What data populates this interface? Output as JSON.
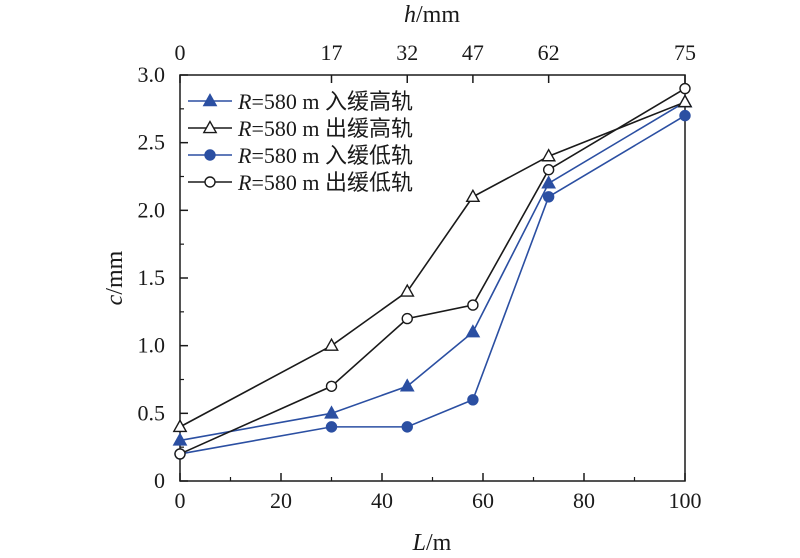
{
  "chart_data": {
    "type": "line",
    "xlabel_var": "L",
    "xlabel_unit": "/m",
    "ylabel_var": "c",
    "ylabel_unit": "/mm",
    "top_axis_var": "h",
    "top_axis_unit": "/mm",
    "xlim": [
      0,
      100
    ],
    "ylim": [
      0,
      3.0
    ],
    "x_ticks": [
      0,
      20,
      40,
      60,
      80,
      100
    ],
    "y_ticks": [
      0,
      0.5,
      1.0,
      1.5,
      2.0,
      2.5,
      3.0
    ],
    "y_tick_labels": [
      "0",
      "0.5",
      "1.0",
      "1.5",
      "2.0",
      "2.5",
      "3.0"
    ],
    "top_ticks": [
      {
        "x": 0,
        "label": "0"
      },
      {
        "x": 30,
        "label": "17"
      },
      {
        "x": 45,
        "label": "32"
      },
      {
        "x": 58,
        "label": "47"
      },
      {
        "x": 73,
        "label": "62"
      },
      {
        "x": 100,
        "label": "75"
      }
    ],
    "grid": false,
    "legend_position": "top-left",
    "x": [
      0,
      30,
      45,
      58,
      73,
      100
    ],
    "series": [
      {
        "name_var": "R",
        "name_rest": "=580 m 入缓高轨",
        "color": "#2b4fa2",
        "marker": "triangle-filled",
        "values": [
          0.3,
          0.5,
          0.7,
          1.1,
          2.2,
          2.8
        ]
      },
      {
        "name_var": "R",
        "name_rest": "=580 m 出缓高轨",
        "color": "#1a1a1a",
        "marker": "triangle-open",
        "values": [
          0.4,
          1.0,
          1.4,
          2.1,
          2.4,
          2.8
        ]
      },
      {
        "name_var": "R",
        "name_rest": "=580 m 入缓低轨",
        "color": "#2b4fa2",
        "marker": "circle-filled",
        "values": [
          0.2,
          0.4,
          0.4,
          0.6,
          2.1,
          2.7
        ]
      },
      {
        "name_var": "R",
        "name_rest": "=580 m 出缓低轨",
        "color": "#1a1a1a",
        "marker": "circle-open",
        "values": [
          0.2,
          0.7,
          1.2,
          1.3,
          2.3,
          2.9
        ]
      }
    ]
  }
}
